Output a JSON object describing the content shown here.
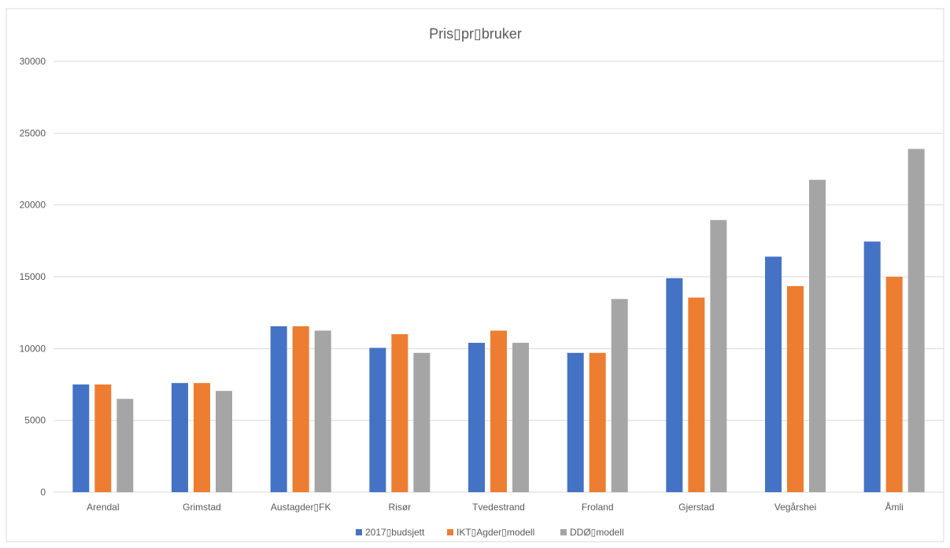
{
  "chart_data": {
    "type": "bar",
    "title": "Pris▯pr▯bruker",
    "xlabel": "",
    "ylabel": "",
    "categories": [
      "Arendal",
      "Grimstad",
      "Austagder▯FK",
      "Risør",
      "Tvedestrand",
      "Froland",
      "Gjerstad",
      "Vegårshei",
      "Åmli"
    ],
    "series": [
      {
        "name": "2017▯budsjett",
        "color": "#4472C4",
        "values": [
          7500,
          7600,
          11550,
          10050,
          10400,
          9700,
          14900,
          16400,
          17450
        ]
      },
      {
        "name": "IKT▯Agder▯modell",
        "color": "#ED7D31",
        "values": [
          7500,
          7600,
          11550,
          11000,
          11250,
          9700,
          13550,
          14350,
          15000
        ]
      },
      {
        "name": "DDØ▯modell",
        "color": "#A5A5A5",
        "values": [
          6500,
          7050,
          11250,
          9700,
          10400,
          13450,
          18950,
          21750,
          23900
        ]
      }
    ],
    "ylim": [
      0,
      30000
    ],
    "yticks": [
      0,
      5000,
      10000,
      15000,
      20000,
      25000,
      30000
    ],
    "grid": true,
    "legend": "bottom"
  }
}
